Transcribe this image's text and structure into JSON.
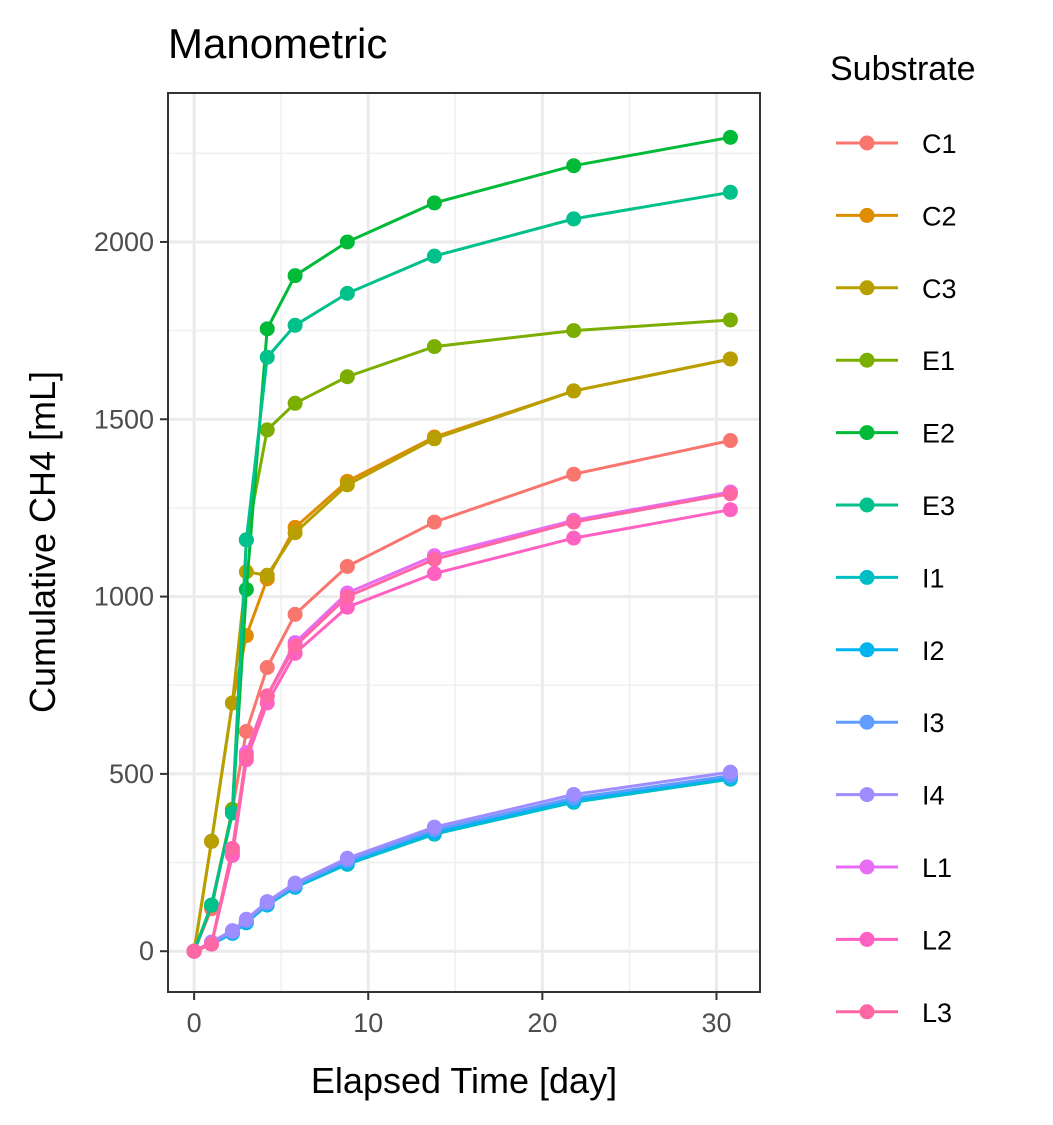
{
  "chart_data": {
    "type": "line",
    "title": "Manometric",
    "xlabel": "Elapsed Time [day]",
    "ylabel": "Cumulative CH4 [mL]",
    "xlim": [
      -1.5,
      32.5
    ],
    "ylim": [
      -115,
      2420
    ],
    "x_ticks": [
      0,
      10,
      20,
      30
    ],
    "y_ticks": [
      0,
      500,
      1000,
      1500,
      2000
    ],
    "grid": true,
    "legend_title": "Substrate",
    "legend_position": "right",
    "x": [
      0,
      1,
      2.2,
      3,
      4.2,
      5.8,
      8.8,
      13.8,
      21.8,
      30.8
    ],
    "series": [
      {
        "name": "C1",
        "color": "#F8766D",
        "values": [
          0,
          120,
          400,
          620,
          800,
          950,
          1085,
          1210,
          1345,
          1440
        ]
      },
      {
        "name": "C2",
        "color": "#DE8C00",
        "values": [
          0,
          310,
          700,
          890,
          1050,
          1195,
          1325,
          1450,
          1580,
          1670
        ]
      },
      {
        "name": "C3",
        "color": "#B79F00",
        "values": [
          0,
          310,
          700,
          1070,
          1060,
          1180,
          1315,
          1445,
          1580,
          1670
        ]
      },
      {
        "name": "E1",
        "color": "#7CAE00",
        "values": [
          0,
          130,
          400,
          1160,
          1470,
          1545,
          1620,
          1705,
          1750,
          1780
        ]
      },
      {
        "name": "E2",
        "color": "#00BA38",
        "values": [
          0,
          130,
          390,
          1020,
          1755,
          1905,
          2000,
          2110,
          2215,
          2295
        ]
      },
      {
        "name": "E3",
        "color": "#00C08B",
        "values": [
          0,
          130,
          390,
          1160,
          1675,
          1765,
          1855,
          1960,
          2065,
          2140
        ]
      },
      {
        "name": "I1",
        "color": "#00BFC4",
        "values": [
          0,
          20,
          50,
          80,
          130,
          180,
          245,
          330,
          420,
          485
        ]
      },
      {
        "name": "I2",
        "color": "#00B4F0",
        "values": [
          0,
          22,
          52,
          82,
          132,
          182,
          250,
          335,
          425,
          490
        ]
      },
      {
        "name": "I3",
        "color": "#619CFF",
        "values": [
          0,
          24,
          54,
          85,
          135,
          186,
          255,
          342,
          432,
          495
        ]
      },
      {
        "name": "I4",
        "color": "#9F8CFF",
        "values": [
          0,
          26,
          58,
          90,
          140,
          192,
          262,
          350,
          442,
          505
        ]
      },
      {
        "name": "L1",
        "color": "#E76BF3",
        "values": [
          0,
          20,
          280,
          560,
          720,
          870,
          1010,
          1115,
          1215,
          1295
        ]
      },
      {
        "name": "L2",
        "color": "#FF61C3",
        "values": [
          0,
          20,
          270,
          540,
          700,
          840,
          970,
          1065,
          1165,
          1245
        ]
      },
      {
        "name": "L3",
        "color": "#FF67A4",
        "values": [
          0,
          20,
          290,
          550,
          720,
          860,
          1000,
          1105,
          1210,
          1290
        ]
      }
    ]
  }
}
